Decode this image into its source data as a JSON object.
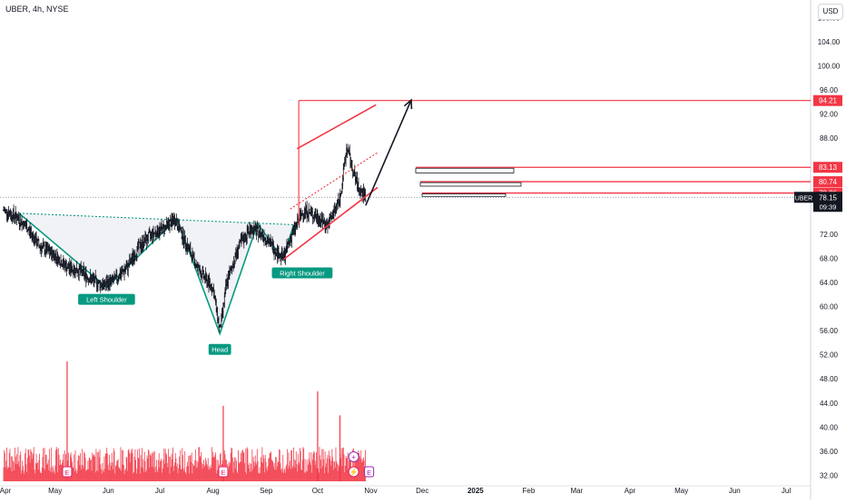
{
  "header": {
    "symbol_title": "UBER, 4h, NYSE",
    "currency": "USD"
  },
  "colors": {
    "pattern": "#089981",
    "resistance": "#f23645",
    "arrow": "#131722",
    "bars": "#131722",
    "volume": "#f23645",
    "event_earnings": "#e91e63",
    "event_other": "#9c27b0"
  },
  "chart_data": {
    "type": "bar",
    "xlabel": "",
    "ylabel": "",
    "x_ticks": [
      "Apr",
      "May",
      "Jun",
      "Jul",
      "Aug",
      "Sep",
      "Oct",
      "Nov",
      "Dec",
      "2025",
      "Feb",
      "Mar",
      "Apr",
      "May",
      "Jun",
      "Jul"
    ],
    "y_ticks": [
      32.0,
      36.0,
      40.0,
      44.0,
      48.0,
      52.0,
      56.0,
      60.0,
      64.0,
      68.0,
      72.0,
      88.0,
      92.0,
      96.0,
      100.0,
      104.0,
      108.0
    ],
    "ylim": [
      31,
      110
    ],
    "price_path": [
      {
        "date": "2024-04-01",
        "price": 76.0
      },
      {
        "date": "2024-04-08",
        "price": 75.0
      },
      {
        "date": "2024-04-15",
        "price": 73.0
      },
      {
        "date": "2024-04-22",
        "price": 70.0
      },
      {
        "date": "2024-05-01",
        "price": 68.5
      },
      {
        "date": "2024-05-08",
        "price": 66.5
      },
      {
        "date": "2024-05-15",
        "price": 66.0
      },
      {
        "date": "2024-05-22",
        "price": 64.5
      },
      {
        "date": "2024-05-29",
        "price": 63.5
      },
      {
        "date": "2024-06-05",
        "price": 64.5
      },
      {
        "date": "2024-06-12",
        "price": 66.5
      },
      {
        "date": "2024-06-19",
        "price": 70.0
      },
      {
        "date": "2024-06-26",
        "price": 72.0
      },
      {
        "date": "2024-07-03",
        "price": 73.0
      },
      {
        "date": "2024-07-10",
        "price": 74.5
      },
      {
        "date": "2024-07-17",
        "price": 70.0
      },
      {
        "date": "2024-07-24",
        "price": 66.0
      },
      {
        "date": "2024-08-01",
        "price": 63.0
      },
      {
        "date": "2024-08-05",
        "price": 56.0
      },
      {
        "date": "2024-08-09",
        "price": 64.0
      },
      {
        "date": "2024-08-16",
        "price": 70.0
      },
      {
        "date": "2024-08-23",
        "price": 73.0
      },
      {
        "date": "2024-08-30",
        "price": 72.0
      },
      {
        "date": "2024-09-06",
        "price": 69.5
      },
      {
        "date": "2024-09-11",
        "price": 68.0
      },
      {
        "date": "2024-09-16",
        "price": 72.0
      },
      {
        "date": "2024-09-23",
        "price": 76.0
      },
      {
        "date": "2024-09-30",
        "price": 75.0
      },
      {
        "date": "2024-10-07",
        "price": 73.5
      },
      {
        "date": "2024-10-14",
        "price": 78.0
      },
      {
        "date": "2024-10-18",
        "price": 86.5
      },
      {
        "date": "2024-10-22",
        "price": 82.0
      },
      {
        "date": "2024-10-25",
        "price": 79.5
      },
      {
        "date": "2024-10-29",
        "price": 78.2
      }
    ],
    "volume_spikes": [
      {
        "date": "2024-05-08",
        "rel": 1.0
      },
      {
        "date": "2024-08-07",
        "rel": 0.63
      },
      {
        "date": "2024-10-01",
        "rel": 0.75
      },
      {
        "date": "2024-10-14",
        "rel": 0.55
      }
    ],
    "price_labels": [
      {
        "value": "94.21",
        "bg": "#f23645"
      },
      {
        "value": "83.13",
        "bg": "#f23645"
      },
      {
        "value": "80.74",
        "bg": "#f23645"
      },
      {
        "value": "78.86",
        "bg": "#f23645"
      }
    ],
    "current_price": {
      "symbol": "UBER",
      "value": "78.15",
      "countdown": "09:39"
    },
    "annotations": [
      {
        "label": "Left Shoulder"
      },
      {
        "label": "Head"
      },
      {
        "label": "Right Shoulder"
      }
    ],
    "event_markers": [
      "E",
      "E",
      "E"
    ]
  }
}
